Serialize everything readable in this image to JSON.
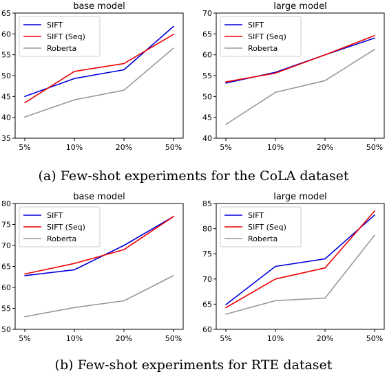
{
  "captions": {
    "a": "(a) Few-shot experiments for the CoLA dataset",
    "b": "(b) Few-shot experiments for RTE dataset"
  },
  "colors": {
    "sift": "#0000dd",
    "sift_seq": "#ee0000",
    "roberta": "#999999",
    "axis": "#000000"
  },
  "chart_data": [
    {
      "type": "line",
      "title": "base model",
      "categories": [
        "5%",
        "10%",
        "20%",
        "50%"
      ],
      "ylim": [
        35,
        65
      ],
      "yticks": [
        35,
        40,
        45,
        50,
        55,
        60,
        65
      ],
      "legend_position": "upper-left",
      "series": [
        {
          "name": "SIFT",
          "values": [
            45.0,
            49.3,
            51.4,
            61.8
          ]
        },
        {
          "name": "SIFT (Seq)",
          "values": [
            43.5,
            51.0,
            52.9,
            59.9
          ]
        },
        {
          "name": "Roberta",
          "values": [
            40.1,
            44.2,
            46.5,
            56.6
          ]
        }
      ]
    },
    {
      "type": "line",
      "title": "large model",
      "categories": [
        "5%",
        "10%",
        "20%",
        "50%"
      ],
      "ylim": [
        40,
        70
      ],
      "yticks": [
        40,
        45,
        50,
        55,
        60,
        65,
        70
      ],
      "legend_position": "upper-left",
      "series": [
        {
          "name": "SIFT",
          "values": [
            53.2,
            55.8,
            60.0,
            64.0
          ]
        },
        {
          "name": "SIFT (Seq)",
          "values": [
            53.5,
            55.6,
            60.0,
            64.6
          ]
        },
        {
          "name": "Roberta",
          "values": [
            43.3,
            51.0,
            53.8,
            61.3
          ]
        }
      ]
    },
    {
      "type": "line",
      "title": "base model",
      "categories": [
        "5%",
        "10%",
        "20%",
        "50%"
      ],
      "ylim": [
        50,
        80
      ],
      "yticks": [
        50,
        55,
        60,
        65,
        70,
        75,
        80
      ],
      "legend_position": "upper-left",
      "series": [
        {
          "name": "SIFT",
          "values": [
            62.8,
            64.2,
            70.0,
            76.9
          ]
        },
        {
          "name": "SIFT (Seq)",
          "values": [
            63.2,
            65.7,
            69.0,
            76.9
          ]
        },
        {
          "name": "Roberta",
          "values": [
            53.0,
            55.2,
            56.8,
            62.8
          ]
        }
      ]
    },
    {
      "type": "line",
      "title": "large model",
      "categories": [
        "5%",
        "10%",
        "20%",
        "50%"
      ],
      "ylim": [
        60,
        85
      ],
      "yticks": [
        60,
        65,
        70,
        75,
        80,
        85
      ],
      "legend_position": "upper-left",
      "series": [
        {
          "name": "SIFT",
          "values": [
            64.9,
            72.5,
            74.0,
            82.7
          ]
        },
        {
          "name": "SIFT (Seq)",
          "values": [
            64.3,
            70.0,
            72.2,
            83.5
          ]
        },
        {
          "name": "Roberta",
          "values": [
            63.0,
            65.7,
            66.2,
            78.7
          ]
        }
      ]
    }
  ]
}
